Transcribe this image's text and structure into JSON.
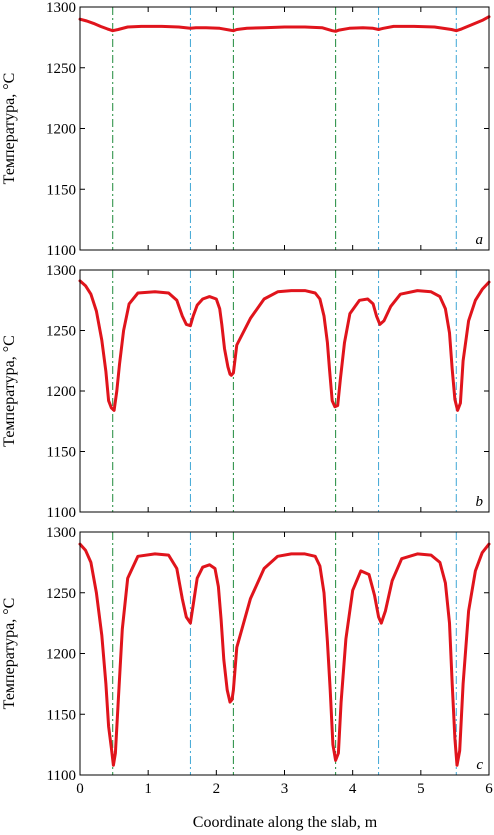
{
  "figure": {
    "xlabel": "Coordinate along the slab, m",
    "ylabel": "Температура, °C",
    "xlim": [
      0,
      6
    ],
    "xticks": [
      0,
      1,
      2,
      3,
      4,
      5,
      6
    ],
    "curve_color": "#e0141c",
    "line_colors": {
      "green": "#1f8a3c",
      "cyan": "#3fa7d6"
    }
  },
  "chart_data": [
    {
      "type": "line",
      "panel_label": "a",
      "ylabel": "Температура, °C",
      "ylim": [
        1100,
        1300
      ],
      "yticks": [
        1100,
        1150,
        1200,
        1250,
        1300
      ],
      "xlim": [
        0,
        6
      ],
      "vertical_lines": [
        {
          "x": 0.48,
          "color": "green"
        },
        {
          "x": 1.62,
          "color": "cyan"
        },
        {
          "x": 2.25,
          "color": "green"
        },
        {
          "x": 3.75,
          "color": "green"
        },
        {
          "x": 4.38,
          "color": "cyan"
        },
        {
          "x": 5.52,
          "color": "cyan"
        }
      ],
      "series": [
        {
          "x": [
            0,
            0.1,
            0.2,
            0.3,
            0.4,
            0.48,
            0.56,
            0.7,
            0.9,
            1.2,
            1.45,
            1.55,
            1.62,
            1.7,
            1.85,
            2.05,
            2.2,
            2.25,
            2.3,
            2.45,
            2.7,
            3.0,
            3.3,
            3.55,
            3.7,
            3.75,
            3.8,
            3.95,
            4.15,
            4.3,
            4.38,
            4.45,
            4.6,
            4.9,
            5.2,
            5.45,
            5.52,
            5.6,
            5.75,
            5.9,
            6.0
          ],
          "y": [
            1290,
            1288.5,
            1286.5,
            1284,
            1282,
            1280.5,
            1281.5,
            1283.5,
            1284,
            1284,
            1283.5,
            1283,
            1282.5,
            1283,
            1283,
            1282.5,
            1281,
            1280.5,
            1281.5,
            1282.5,
            1283,
            1283.5,
            1283.5,
            1283,
            1280.5,
            1280,
            1281,
            1282.5,
            1283,
            1282.5,
            1281.5,
            1282.5,
            1284,
            1284,
            1283.5,
            1281.5,
            1280.5,
            1282,
            1285.5,
            1289,
            1292
          ]
        }
      ]
    },
    {
      "type": "line",
      "panel_label": "b",
      "ylabel": "Температура, °C",
      "ylim": [
        1100,
        1300
      ],
      "yticks": [
        1100,
        1150,
        1200,
        1250,
        1300
      ],
      "xlim": [
        0,
        6
      ],
      "vertical_lines": [
        {
          "x": 0.48,
          "color": "green"
        },
        {
          "x": 1.62,
          "color": "cyan"
        },
        {
          "x": 2.25,
          "color": "green"
        },
        {
          "x": 3.75,
          "color": "green"
        },
        {
          "x": 4.38,
          "color": "cyan"
        },
        {
          "x": 5.52,
          "color": "cyan"
        }
      ],
      "series": [
        {
          "x": [
            0,
            0.08,
            0.16,
            0.24,
            0.32,
            0.38,
            0.42,
            0.46,
            0.5,
            0.54,
            0.58,
            0.64,
            0.72,
            0.85,
            1.1,
            1.3,
            1.42,
            1.5,
            1.56,
            1.62,
            1.66,
            1.72,
            1.8,
            1.9,
            2.0,
            2.05,
            2.08,
            2.12,
            2.17,
            2.2,
            2.22,
            2.25,
            2.3,
            2.5,
            2.7,
            2.9,
            3.1,
            3.3,
            3.45,
            3.52,
            3.58,
            3.63,
            3.66,
            3.7,
            3.74,
            3.78,
            3.82,
            3.88,
            3.96,
            4.1,
            4.22,
            4.3,
            4.35,
            4.4,
            4.46,
            4.56,
            4.7,
            4.95,
            5.15,
            5.28,
            5.36,
            5.42,
            5.46,
            5.5,
            5.54,
            5.58,
            5.62,
            5.7,
            5.8,
            5.9,
            6.0
          ],
          "y": [
            1291,
            1287,
            1280,
            1266,
            1242,
            1216,
            1192,
            1186,
            1184,
            1200,
            1222,
            1250,
            1272,
            1281,
            1282,
            1281,
            1275,
            1262,
            1255,
            1254,
            1262,
            1271,
            1276,
            1278,
            1276,
            1268,
            1255,
            1235,
            1220,
            1214,
            1213,
            1215,
            1238,
            1260,
            1276,
            1282,
            1283,
            1283,
            1281,
            1276,
            1262,
            1240,
            1218,
            1192,
            1187,
            1188,
            1210,
            1240,
            1264,
            1275,
            1276,
            1272,
            1262,
            1255,
            1258,
            1270,
            1280,
            1283,
            1282,
            1278,
            1268,
            1248,
            1218,
            1193,
            1184,
            1190,
            1225,
            1258,
            1275,
            1284,
            1290
          ]
        }
      ]
    },
    {
      "type": "line",
      "panel_label": "c",
      "ylabel": "Температура, °C",
      "xlabel": "Coordinate along the slab, m",
      "ylim": [
        1100,
        1300
      ],
      "yticks": [
        1100,
        1150,
        1200,
        1250,
        1300
      ],
      "xlim": [
        0,
        6
      ],
      "xticks": [
        0,
        1,
        2,
        3,
        4,
        5,
        6
      ],
      "vertical_lines": [
        {
          "x": 0.48,
          "color": "green"
        },
        {
          "x": 1.62,
          "color": "cyan"
        },
        {
          "x": 2.25,
          "color": "green"
        },
        {
          "x": 3.75,
          "color": "green"
        },
        {
          "x": 4.38,
          "color": "cyan"
        },
        {
          "x": 5.52,
          "color": "cyan"
        }
      ],
      "series": [
        {
          "x": [
            0,
            0.08,
            0.16,
            0.24,
            0.32,
            0.38,
            0.42,
            0.46,
            0.49,
            0.52,
            0.56,
            0.62,
            0.7,
            0.85,
            1.1,
            1.3,
            1.42,
            1.5,
            1.56,
            1.62,
            1.66,
            1.72,
            1.8,
            1.9,
            1.98,
            2.03,
            2.07,
            2.11,
            2.16,
            2.2,
            2.23,
            2.25,
            2.3,
            2.5,
            2.7,
            2.9,
            3.1,
            3.3,
            3.45,
            3.52,
            3.58,
            3.63,
            3.67,
            3.71,
            3.75,
            3.79,
            3.83,
            3.9,
            4.0,
            4.12,
            4.24,
            4.32,
            4.38,
            4.42,
            4.48,
            4.58,
            4.72,
            4.95,
            5.15,
            5.28,
            5.36,
            5.42,
            5.46,
            5.5,
            5.53,
            5.57,
            5.62,
            5.7,
            5.8,
            5.9,
            6.0
          ],
          "y": [
            1290,
            1285,
            1275,
            1250,
            1215,
            1175,
            1140,
            1122,
            1108,
            1118,
            1160,
            1220,
            1262,
            1280,
            1282,
            1281,
            1270,
            1245,
            1230,
            1225,
            1240,
            1262,
            1271,
            1273,
            1270,
            1255,
            1228,
            1195,
            1170,
            1160,
            1162,
            1170,
            1205,
            1245,
            1270,
            1280,
            1282,
            1282,
            1280,
            1272,
            1250,
            1210,
            1170,
            1125,
            1112,
            1118,
            1160,
            1212,
            1252,
            1268,
            1265,
            1248,
            1230,
            1225,
            1235,
            1260,
            1278,
            1282,
            1281,
            1275,
            1258,
            1225,
            1175,
            1130,
            1108,
            1120,
            1175,
            1235,
            1268,
            1283,
            1290
          ]
        }
      ]
    }
  ]
}
